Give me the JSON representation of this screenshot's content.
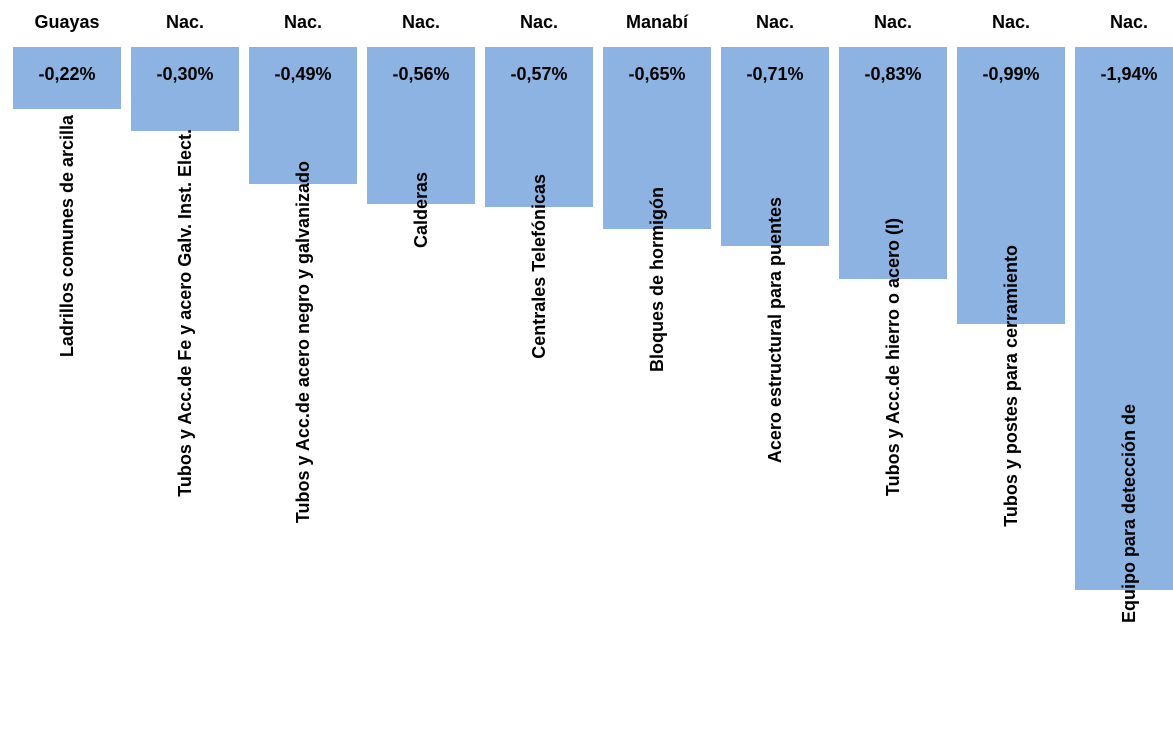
{
  "chart_data": {
    "type": "bar",
    "regions": [
      "Guayas",
      "Nac.",
      "Nac.",
      "Nac.",
      "Nac.",
      "Manabí",
      "Nac.",
      "Nac.",
      "Nac.",
      "Nac."
    ],
    "categories": [
      "Ladrillos comunes de arcilla",
      "Tubos y Acc.de Fe y acero Galv. Inst. Elect.",
      "Tubos y Acc.de acero negro y galvanizado",
      "Calderas",
      "Centrales Telefónicas",
      "Bloques de hormigón",
      "Acero estructural para puentes",
      "Tubos y Acc.de hierro o acero (I)",
      "Tubos y postes para cerramiento",
      "Equipo para detección de"
    ],
    "values": [
      -0.22,
      -0.3,
      -0.49,
      -0.56,
      -0.57,
      -0.65,
      -0.71,
      -0.83,
      -0.99,
      -1.94
    ],
    "value_labels": [
      "-0,22%",
      "-0,30%",
      "-0,49%",
      "-0,56%",
      "-0,57%",
      "-0,65%",
      "-0,71%",
      "-0,83%",
      "-0,99%",
      "-1,94%"
    ],
    "color": "#8db3e2",
    "ylim": [
      -2,
      0
    ]
  }
}
